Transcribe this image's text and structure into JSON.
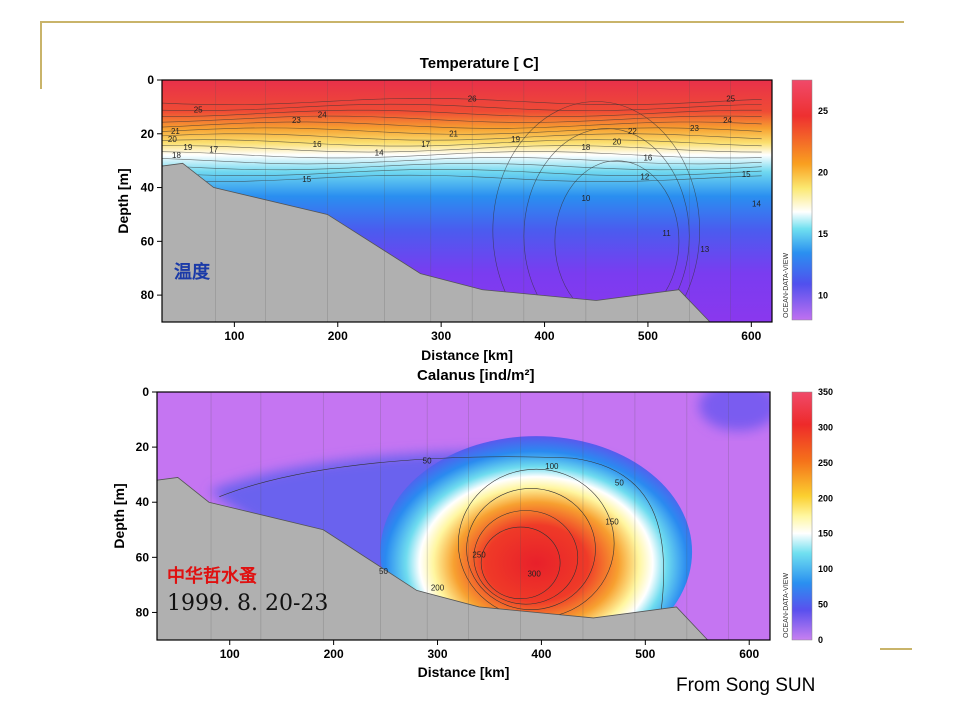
{
  "credit": "From Song SUN",
  "colors": {
    "accent": "#c9b46a"
  },
  "chart_data": [
    {
      "type": "heatmap",
      "title": "Temperature [ C]",
      "xlabel": "Distance [km]",
      "ylabel": "Depth [m]",
      "xlim": [
        30,
        620
      ],
      "ylim": [
        0,
        90
      ],
      "y_inverted": true,
      "xticks": [
        100,
        200,
        300,
        400,
        500,
        600
      ],
      "yticks": [
        0,
        20,
        40,
        60,
        80
      ],
      "colorbar": {
        "ticks": [
          10,
          15,
          20,
          25
        ],
        "range": [
          8,
          27.5
        ]
      },
      "annotation": "温度",
      "watermark": "OCEAN-DATA-VIEW",
      "bottom_profile": [
        [
          30,
          32
        ],
        [
          50,
          31
        ],
        [
          80,
          40
        ],
        [
          190,
          50
        ],
        [
          280,
          72
        ],
        [
          340,
          78
        ],
        [
          450,
          82
        ],
        [
          530,
          78
        ],
        [
          560,
          90
        ],
        [
          620,
          90
        ]
      ],
      "contour_labels": [
        {
          "text": "26",
          "x": 330,
          "y": 8
        },
        {
          "text": "25",
          "x": 65,
          "y": 12
        },
        {
          "text": "24",
          "x": 185,
          "y": 14
        },
        {
          "text": "23",
          "x": 160,
          "y": 16
        },
        {
          "text": "25",
          "x": 580,
          "y": 8
        },
        {
          "text": "24",
          "x": 577,
          "y": 16
        },
        {
          "text": "23",
          "x": 545,
          "y": 19
        },
        {
          "text": "22",
          "x": 485,
          "y": 20
        },
        {
          "text": "21",
          "x": 43,
          "y": 20
        },
        {
          "text": "20",
          "x": 470,
          "y": 24
        },
        {
          "text": "20",
          "x": 40,
          "y": 23
        },
        {
          "text": "21",
          "x": 312,
          "y": 21
        },
        {
          "text": "19",
          "x": 372,
          "y": 23
        },
        {
          "text": "18",
          "x": 440,
          "y": 26
        },
        {
          "text": "17",
          "x": 285,
          "y": 25
        },
        {
          "text": "17",
          "x": 80,
          "y": 27
        },
        {
          "text": "16",
          "x": 180,
          "y": 25
        },
        {
          "text": "16",
          "x": 500,
          "y": 30
        },
        {
          "text": "15",
          "x": 595,
          "y": 36
        },
        {
          "text": "14",
          "x": 240,
          "y": 28
        },
        {
          "text": "12",
          "x": 497,
          "y": 37
        },
        {
          "text": "10",
          "x": 440,
          "y": 45
        },
        {
          "text": "15",
          "x": 170,
          "y": 38
        },
        {
          "text": "11",
          "x": 518,
          "y": 58
        },
        {
          "text": "13",
          "x": 555,
          "y": 64
        },
        {
          "text": "14",
          "x": 605,
          "y": 47
        },
        {
          "text": "18",
          "x": 44,
          "y": 29
        },
        {
          "text": "19",
          "x": 55,
          "y": 26
        }
      ]
    },
    {
      "type": "heatmap",
      "title": "Calanus [ind/m²]",
      "xlabel": "Distance [km]",
      "ylabel": "Depth [m]",
      "xlim": [
        30,
        620
      ],
      "ylim": [
        0,
        90
      ],
      "y_inverted": true,
      "xticks": [
        100,
        200,
        300,
        400,
        500,
        600
      ],
      "yticks": [
        0,
        20,
        40,
        60,
        80
      ],
      "colorbar": {
        "ticks": [
          0,
          50,
          100,
          150,
          200,
          250,
          300,
          350
        ],
        "range": [
          0,
          350
        ]
      },
      "annotation": "中华哲水蚤",
      "date": "1999. 8. 20-23",
      "watermark": "OCEAN-DATA-VIEW",
      "bottom_profile": [
        [
          30,
          32
        ],
        [
          50,
          31
        ],
        [
          80,
          40
        ],
        [
          190,
          50
        ],
        [
          280,
          72
        ],
        [
          340,
          78
        ],
        [
          450,
          82
        ],
        [
          530,
          78
        ],
        [
          560,
          90
        ],
        [
          620,
          90
        ]
      ],
      "contour_labels": [
        {
          "text": "50",
          "x": 290,
          "y": 26
        },
        {
          "text": "100",
          "x": 410,
          "y": 28
        },
        {
          "text": "50",
          "x": 475,
          "y": 34
        },
        {
          "text": "150",
          "x": 468,
          "y": 48
        },
        {
          "text": "250",
          "x": 340,
          "y": 60
        },
        {
          "text": "300",
          "x": 393,
          "y": 67
        },
        {
          "text": "200",
          "x": 300,
          "y": 72
        },
        {
          "text": "50",
          "x": 248,
          "y": 66
        }
      ]
    }
  ]
}
